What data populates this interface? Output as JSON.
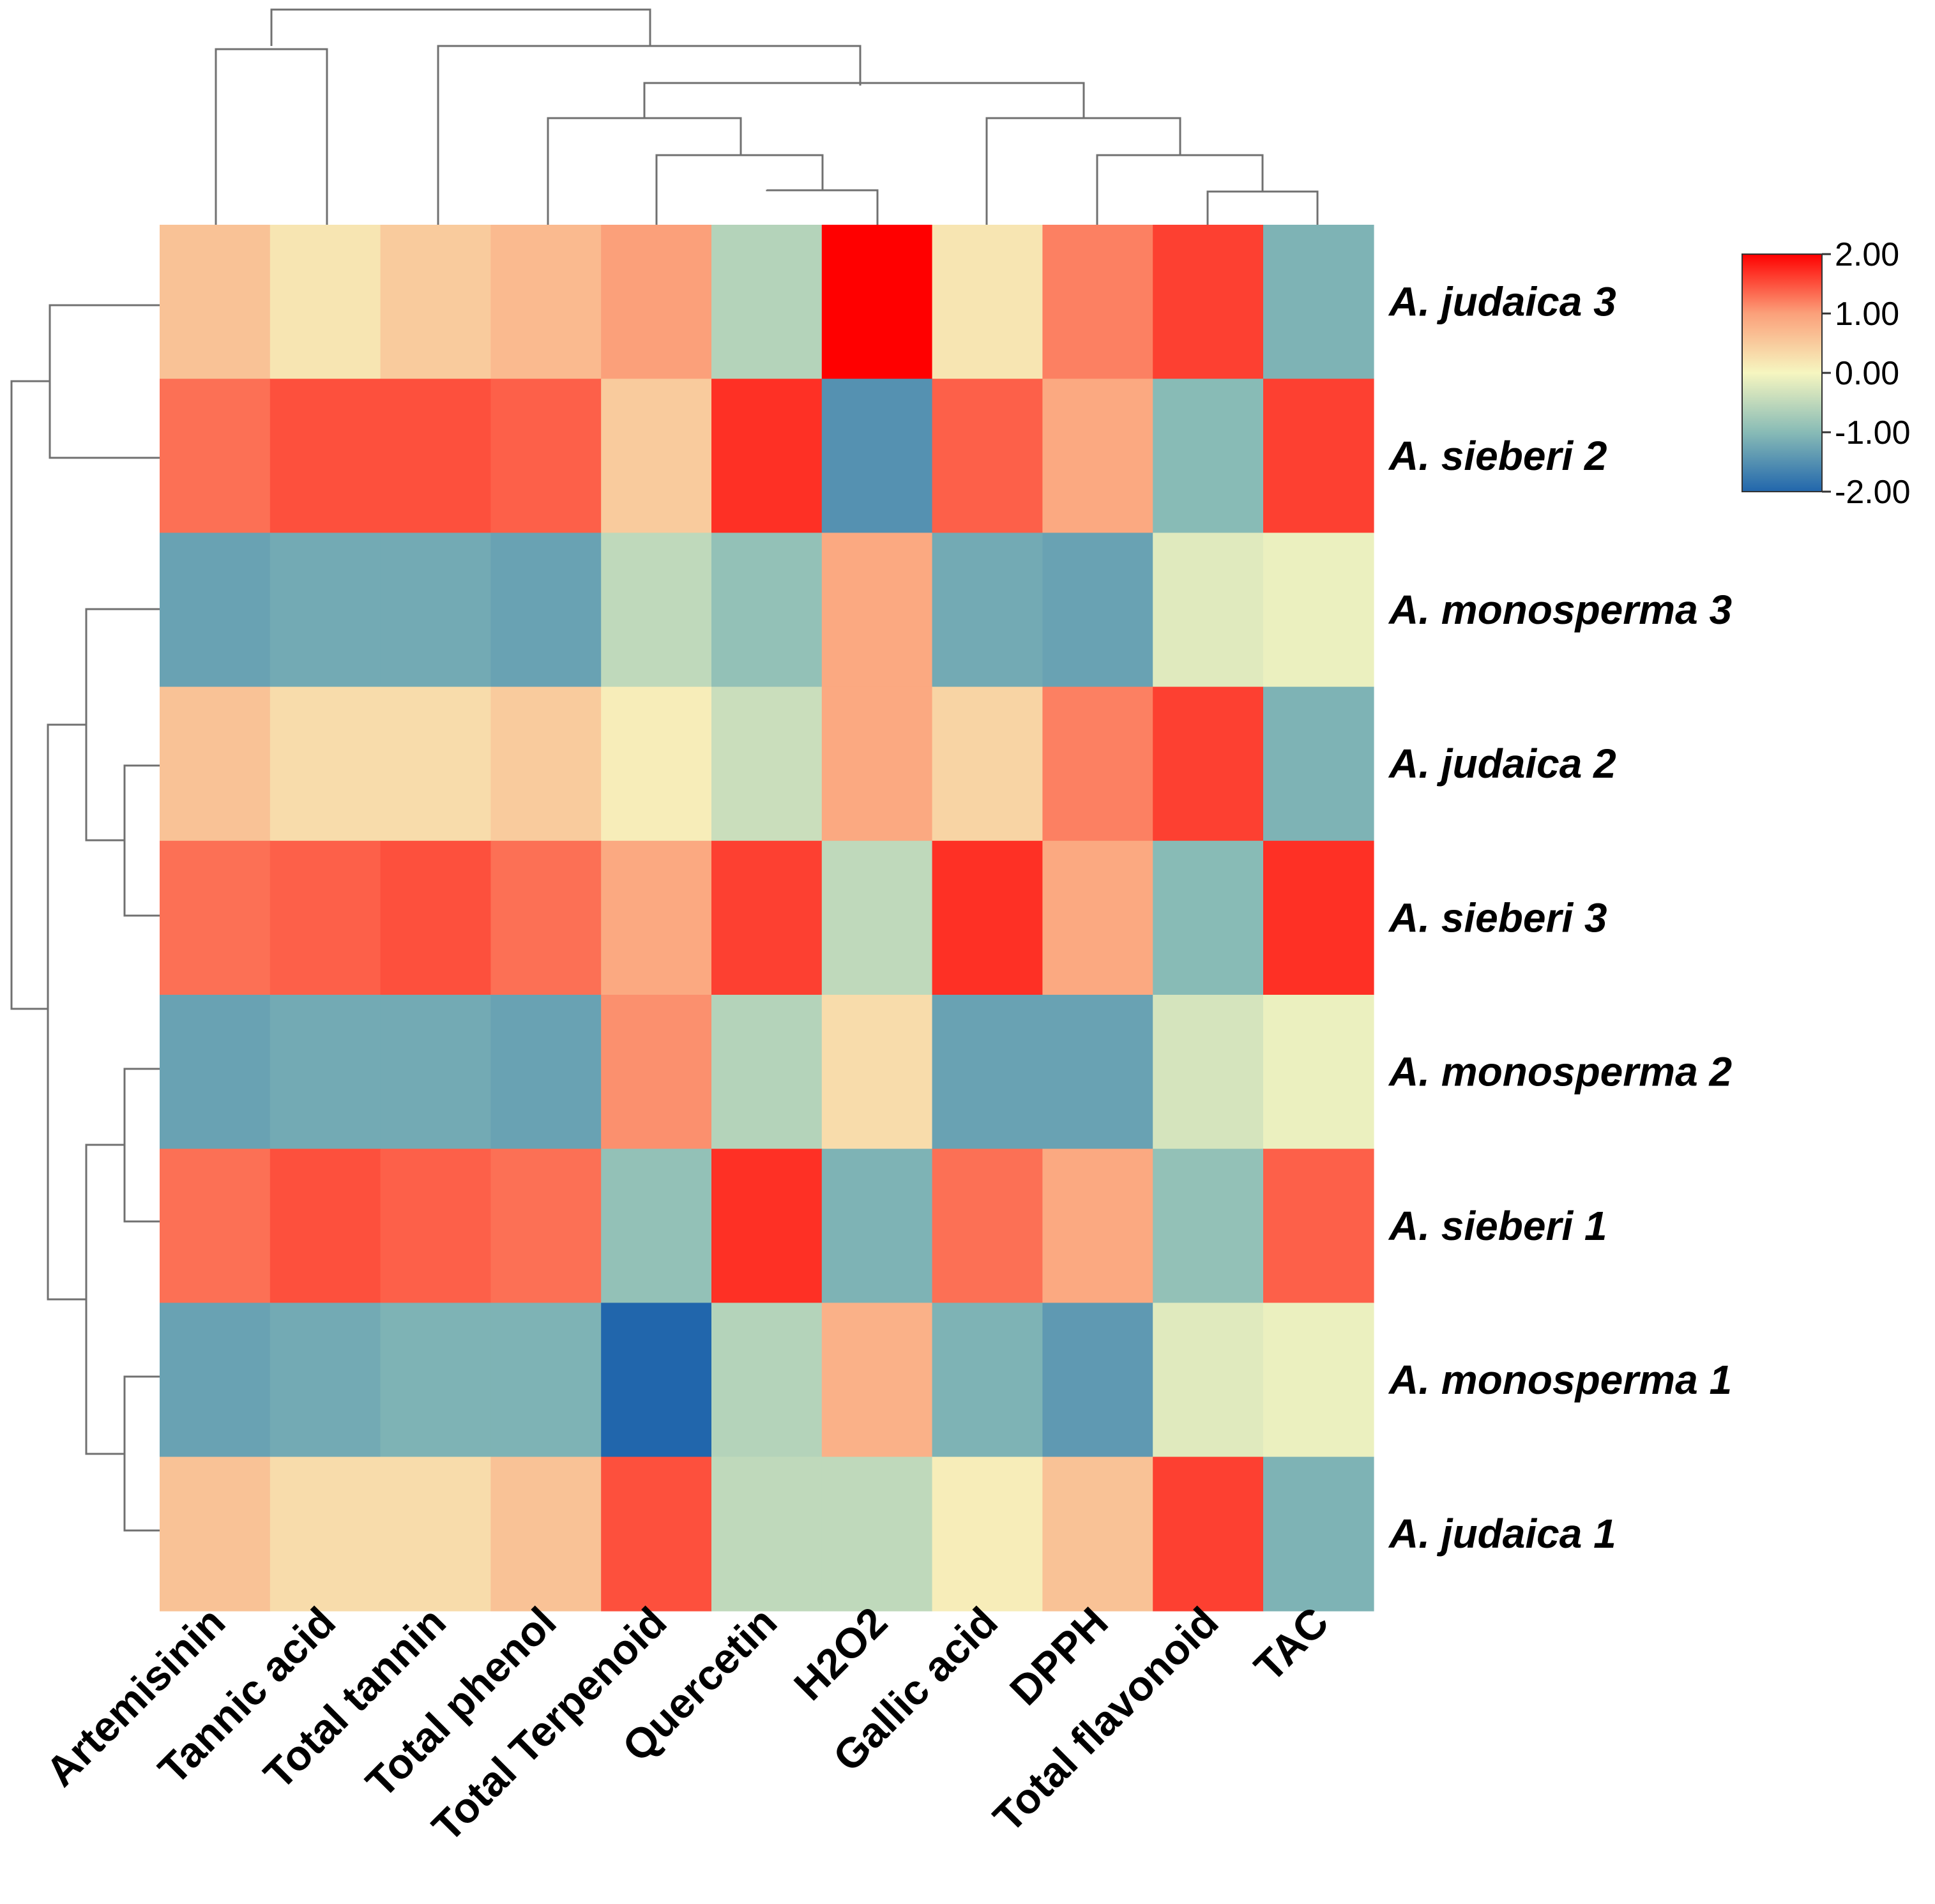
{
  "chart_data": {
    "type": "heatmap",
    "columns": [
      "Artemisinin",
      "Tannic acid",
      "Total tannin",
      "Total phenol",
      "Total Terpenoid",
      "Quercetin",
      "H2O2",
      "Gallic acid",
      "DPPH",
      "Total flavonoid",
      "TAC"
    ],
    "rows": [
      "A. judaica 3",
      "A. sieberi 2",
      "A. monosperma 3",
      "A. judaica 2",
      "A. sieberi 3",
      "A. monosperma 2",
      "A. sieberi 1",
      "A. monosperma 1",
      "A. judaica 1"
    ],
    "values": [
      [
        0.6,
        0.2,
        0.5,
        0.7,
        1.0,
        -0.6,
        2.0,
        0.2,
        1.2,
        1.6,
        -1.1
      ],
      [
        1.3,
        1.5,
        1.5,
        1.4,
        0.5,
        1.7,
        -1.5,
        1.4,
        0.9,
        -1.0,
        1.6
      ],
      [
        -1.3,
        -1.2,
        -1.2,
        -1.3,
        -0.5,
        -0.9,
        0.9,
        -1.2,
        -1.3,
        -0.2,
        -0.1
      ],
      [
        0.6,
        0.3,
        0.3,
        0.5,
        0.1,
        -0.4,
        0.9,
        0.4,
        1.2,
        1.6,
        -1.1
      ],
      [
        1.3,
        1.4,
        1.5,
        1.3,
        0.9,
        1.6,
        -0.5,
        1.7,
        0.9,
        -1.0,
        1.7
      ],
      [
        -1.3,
        -1.2,
        -1.2,
        -1.3,
        1.1,
        -0.6,
        0.3,
        -1.3,
        -1.3,
        -0.3,
        -0.1
      ],
      [
        1.3,
        1.5,
        1.4,
        1.3,
        -0.9,
        1.7,
        -1.1,
        1.3,
        0.9,
        -0.9,
        1.4
      ],
      [
        -1.3,
        -1.2,
        -1.1,
        -1.1,
        -2.2,
        -0.6,
        0.8,
        -1.1,
        -1.4,
        -0.2,
        -0.1
      ],
      [
        0.6,
        0.3,
        0.3,
        0.6,
        1.5,
        -0.5,
        -0.5,
        0.1,
        0.6,
        1.6,
        -1.1
      ]
    ],
    "colorscale": {
      "min": -2.0,
      "max": 2.0,
      "stops": [
        "#2166ac",
        "#88bbb6",
        "#f6f6c0",
        "#fba07a",
        "#ff0000"
      ],
      "tick_labels": [
        "2.00",
        "1.00",
        "0.00",
        "-1.00",
        "-2.00"
      ]
    },
    "row_dendrogram": true,
    "column_dendrogram": true,
    "legend_position": "top-right"
  }
}
